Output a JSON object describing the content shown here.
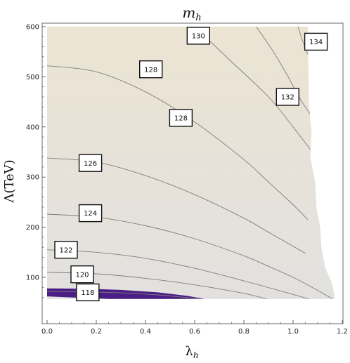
{
  "chart_data": {
    "type": "contour",
    "title": "m",
    "title_sub": "h",
    "xlabel": "λ",
    "xlabel_sub": "h",
    "ylabel": "Λ(TeV)",
    "xlim": [
      0.0,
      1.2
    ],
    "ylim": [
      55,
      610
    ],
    "x_ticks": [
      "0.0",
      "0.2",
      "0.4",
      "0.6",
      "0.8",
      "1.0",
      "1.2"
    ],
    "y_ticks": [
      "100",
      "200",
      "300",
      "400",
      "500",
      "600"
    ],
    "colors": {
      "fill_top": "#ece4d3",
      "fill_bottom": "#e2e1df",
      "line": "#7f7f7f",
      "dark_band": "#4b1e86"
    },
    "contours": [
      {
        "level": "118",
        "points": [
          [
            0.0,
            72
          ],
          [
            0.15,
            71
          ],
          [
            0.3,
            69
          ],
          [
            0.45,
            65
          ],
          [
            0.62,
            57
          ]
        ]
      },
      {
        "level": "120",
        "points": [
          [
            0.0,
            110
          ],
          [
            0.2,
            107
          ],
          [
            0.4,
            98
          ],
          [
            0.6,
            85
          ],
          [
            0.8,
            68
          ],
          [
            0.9,
            56
          ]
        ]
      },
      {
        "level": "122",
        "points": [
          [
            0.0,
            155
          ],
          [
            0.2,
            150
          ],
          [
            0.4,
            138
          ],
          [
            0.6,
            118
          ],
          [
            0.8,
            93
          ],
          [
            1.0,
            66
          ],
          [
            1.07,
            56
          ]
        ]
      },
      {
        "level": "124",
        "points": [
          [
            0.0,
            226
          ],
          [
            0.2,
            220
          ],
          [
            0.4,
            203
          ],
          [
            0.6,
            177
          ],
          [
            0.8,
            143
          ],
          [
            0.9,
            122
          ],
          [
            1.0,
            100
          ],
          [
            1.1,
            74
          ],
          [
            1.16,
            57
          ]
        ]
      },
      {
        "level": "126",
        "points": [
          [
            0.0,
            338
          ],
          [
            0.2,
            330
          ],
          [
            0.4,
            303
          ],
          [
            0.6,
            265
          ],
          [
            0.8,
            218
          ],
          [
            0.9,
            190
          ],
          [
            1.0,
            162
          ],
          [
            1.05,
            148
          ]
        ]
      },
      {
        "level": "128",
        "points": [
          [
            0.0,
            522
          ],
          [
            0.2,
            510
          ],
          [
            0.4,
            470
          ],
          [
            0.6,
            410
          ],
          [
            0.8,
            335
          ],
          [
            0.9,
            290
          ],
          [
            1.0,
            245
          ],
          [
            1.06,
            215
          ]
        ]
      },
      {
        "level": "130",
        "points": [
          [
            0.6,
            600
          ],
          [
            0.75,
            530
          ],
          [
            0.9,
            460
          ],
          [
            1.0,
            400
          ],
          [
            1.07,
            355
          ]
        ]
      },
      {
        "level": "132",
        "points": [
          [
            0.85,
            600
          ],
          [
            0.92,
            550
          ],
          [
            0.98,
            500
          ],
          [
            1.03,
            455
          ],
          [
            1.07,
            425
          ]
        ]
      },
      {
        "level": "134",
        "points": [
          [
            1.02,
            600
          ],
          [
            1.04,
            570
          ],
          [
            1.06,
            545
          ]
        ]
      }
    ],
    "labels": [
      {
        "text": "130",
        "x": 0.615,
        "y": 582
      },
      {
        "text": "134",
        "x": 1.093,
        "y": 570
      },
      {
        "text": "128",
        "x": 0.422,
        "y": 515
      },
      {
        "text": "132",
        "x": 0.978,
        "y": 460
      },
      {
        "text": "128",
        "x": 0.544,
        "y": 418
      },
      {
        "text": "126",
        "x": 0.176,
        "y": 328
      },
      {
        "text": "124",
        "x": 0.176,
        "y": 228
      },
      {
        "text": "122",
        "x": 0.077,
        "y": 155
      },
      {
        "text": "120",
        "x": 0.143,
        "y": 106
      },
      {
        "text": "118",
        "x": 0.165,
        "y": 70
      }
    ]
  }
}
